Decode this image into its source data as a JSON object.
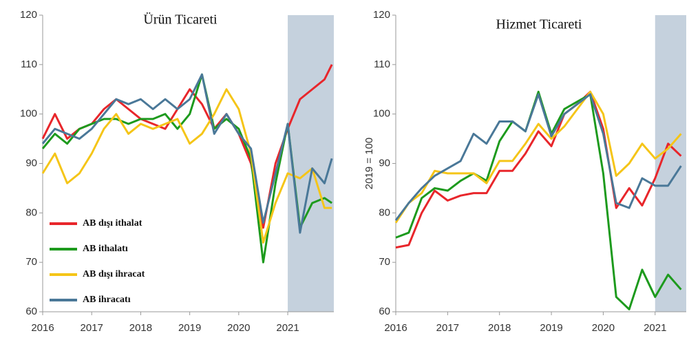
{
  "chart_data": [
    {
      "type": "line",
      "title": "Ürün Ticareti",
      "legend": true,
      "legend_position": "lower left",
      "xlim": [
        2016,
        2021.94
      ],
      "xticks": [
        2016,
        2017,
        2018,
        2019,
        2020,
        2021
      ],
      "ylim": [
        60,
        120
      ],
      "yticks": [
        60,
        70,
        80,
        90,
        100,
        110,
        120
      ],
      "shade_from": 2021,
      "x": [
        2016,
        2016.25,
        2016.5,
        2016.75,
        2017,
        2017.25,
        2017.5,
        2017.75,
        2018,
        2018.25,
        2018.5,
        2018.75,
        2019,
        2019.25,
        2019.5,
        2019.75,
        2020,
        2020.25,
        2020.5,
        2020.75,
        2021,
        2021.25,
        2021.5,
        2021.75,
        2021.9
      ],
      "series": [
        {
          "name": "AB dışı ithalat",
          "color": "#e8262b",
          "values": [
            95,
            100,
            95,
            97,
            98,
            101,
            103,
            101,
            99,
            98,
            97,
            101,
            105,
            102,
            97,
            100,
            96,
            90,
            77,
            90,
            97,
            103,
            105,
            107,
            110
          ]
        },
        {
          "name": "AB ithalatı",
          "color": "#1d9a1d",
          "values": [
            93,
            96,
            94,
            97,
            98,
            99,
            99,
            98,
            99,
            99,
            100,
            97,
            100,
            108,
            97,
            99,
            97,
            91,
            70,
            86,
            98,
            77,
            82,
            83,
            82
          ]
        },
        {
          "name": "AB dışı ihracat",
          "color": "#f5c518",
          "values": [
            88,
            92,
            86,
            88,
            92,
            97,
            100,
            96,
            98,
            97,
            98,
            99,
            94,
            96,
            100,
            105,
            101,
            92,
            74,
            82,
            88,
            87,
            89,
            81,
            81
          ]
        },
        {
          "name": "AB ihracatı",
          "color": "#4a7898",
          "values": [
            94,
            97,
            96,
            95,
            97,
            100,
            103,
            102,
            103,
            101,
            103,
            101,
            103,
            108,
            96,
            100,
            96,
            93,
            78,
            88,
            98,
            76,
            89,
            86,
            91
          ]
        }
      ]
    },
    {
      "type": "line",
      "title": "Hizmet Ticareti",
      "ylabel": "2019 = 100",
      "xlim": [
        2016,
        2021.6
      ],
      "xticks": [
        2016,
        2017,
        2018,
        2019,
        2020,
        2021
      ],
      "ylim": [
        60,
        120
      ],
      "yticks": [
        60,
        70,
        80,
        90,
        100,
        110,
        120
      ],
      "shade_from": 2021,
      "x": [
        2016,
        2016.25,
        2016.5,
        2016.75,
        2017,
        2017.25,
        2017.5,
        2017.75,
        2018,
        2018.25,
        2018.5,
        2018.75,
        2019,
        2019.25,
        2019.5,
        2019.75,
        2020,
        2020.25,
        2020.5,
        2020.75,
        2021,
        2021.25,
        2021.5
      ],
      "series": [
        {
          "color": "#e8262b",
          "values": [
            73,
            73.5,
            80,
            84.5,
            82.5,
            83.5,
            84,
            84,
            88.5,
            88.5,
            92,
            96.5,
            93.5,
            100,
            102,
            104.5,
            97,
            81,
            85,
            81.5,
            87,
            94,
            91.5
          ]
        },
        {
          "color": "#1d9a1d",
          "values": [
            75,
            76,
            83,
            85,
            84.5,
            86.5,
            88,
            86.5,
            94.5,
            98.5,
            96.5,
            104.5,
            96,
            101,
            102.5,
            104,
            88,
            63,
            60.5,
            68.5,
            63,
            67.5,
            64.5
          ]
        },
        {
          "color": "#f5c518",
          "values": [
            78,
            82,
            84,
            88.5,
            88,
            88,
            88,
            86,
            90.5,
            90.5,
            94,
            98,
            95,
            97.5,
            101,
            104.5,
            100,
            87.5,
            90,
            94,
            91,
            93,
            96
          ]
        },
        {
          "color": "#4a7898",
          "values": [
            78.5,
            82,
            85,
            87.5,
            89,
            90.5,
            96,
            94,
            98.5,
            98.5,
            96.5,
            104,
            95.5,
            100,
            102,
            104,
            96,
            82,
            81,
            87,
            85.5,
            85.5,
            89.5
          ]
        }
      ]
    }
  ]
}
